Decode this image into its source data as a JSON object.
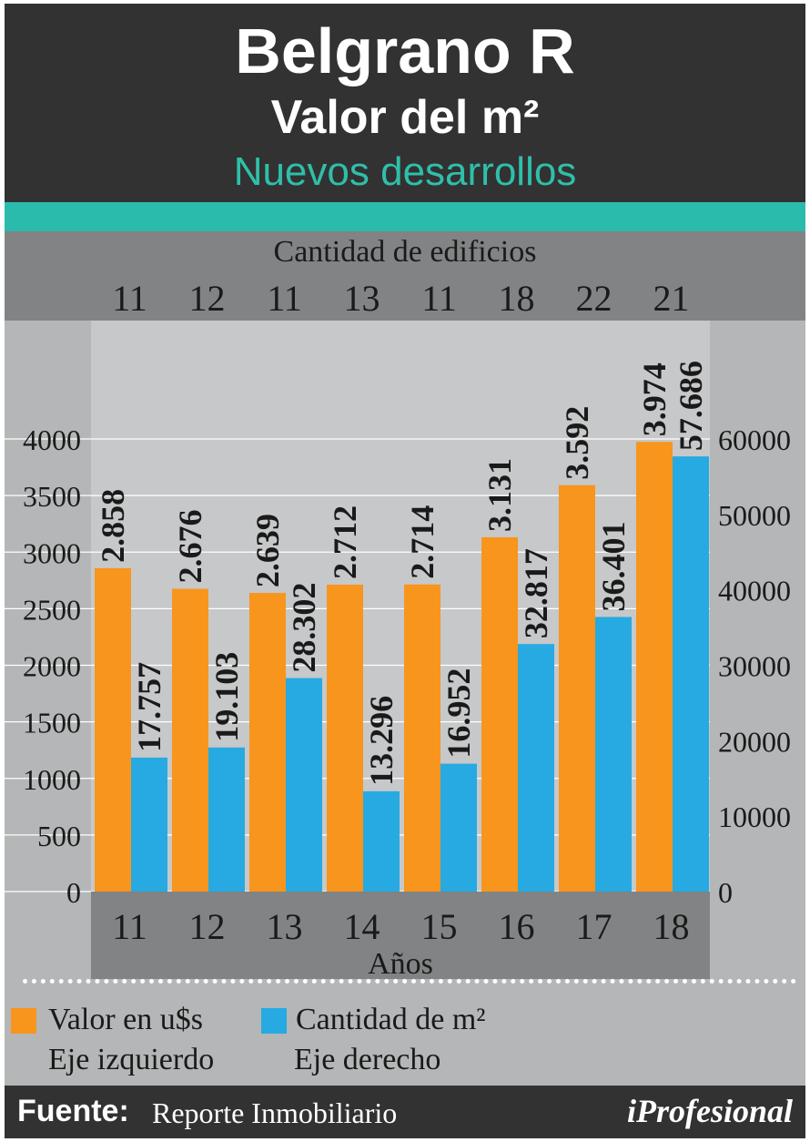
{
  "header": {
    "title": "Belgrano R",
    "subtitle": "Valor del m²",
    "subtitle2": "Nuevos desarrollos"
  },
  "buildings": {
    "title": "Cantidad de edificios",
    "counts": [
      "11",
      "12",
      "11",
      "13",
      "11",
      "18",
      "22",
      "21"
    ]
  },
  "chart_data": {
    "type": "bar",
    "categories": [
      "11",
      "12",
      "13",
      "14",
      "15",
      "16",
      "17",
      "18"
    ],
    "xlabel": "Años",
    "series": [
      {
        "name": "Valor en u$s",
        "axis": "left",
        "color": "#f7951d",
        "values": [
          2858,
          2676,
          2639,
          2712,
          2714,
          3131,
          3592,
          3974
        ],
        "labels": [
          "2.858",
          "2.676",
          "2.639",
          "2.712",
          "2.714",
          "3.131",
          "3.592",
          "3.974"
        ]
      },
      {
        "name": "Cantidad de m²",
        "axis": "right",
        "color": "#27aae1",
        "values": [
          17757,
          19103,
          28302,
          13296,
          16952,
          32817,
          36401,
          57686
        ],
        "labels": [
          "17.757",
          "19.103",
          "28.302",
          "13.296",
          "16.952",
          "32.817",
          "36.401",
          "57.686"
        ]
      }
    ],
    "y_left": {
      "range": [
        0,
        4000
      ],
      "ticks": [
        "0",
        "500",
        "1000",
        "1500",
        "2000",
        "2500",
        "3000",
        "3500",
        "4000"
      ]
    },
    "y_right": {
      "range": [
        0,
        60000
      ],
      "ticks": [
        "0",
        "10000",
        "20000",
        "30000",
        "40000",
        "50000",
        "60000"
      ]
    },
    "grid": "horizontal"
  },
  "legend": {
    "left": {
      "label": "Valor en u$s",
      "note": "Eje izquierdo",
      "color": "#f7951d"
    },
    "right": {
      "label": "Cantidad de m²",
      "note": "Eje derecho",
      "color": "#27aae1"
    }
  },
  "footer": {
    "label": "Fuente:",
    "source": "Reporte Inmobiliario",
    "brand": "iProfesional"
  }
}
